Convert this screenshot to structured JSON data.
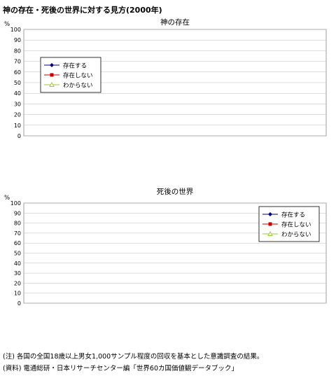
{
  "page": {
    "title": "神の存在・死後の世界に対する見方(2000年)",
    "notes": [
      "(注) 各国の全国18歳以上男女1,000サンプル程度の回収を基本とした意識調査の結果。",
      "(資料) 電通総研・日本リサーチセンター編「世界60カ国価値観データブック」"
    ]
  },
  "legend_labels": [
    "存在する",
    "存在しない",
    "わからない"
  ],
  "chart_data": [
    {
      "type": "line",
      "title": "神の存在",
      "ylabel": "%",
      "ylim": [
        0,
        100
      ],
      "yticks": [
        0,
        10,
        20,
        30,
        40,
        50,
        60,
        70,
        80,
        90,
        100
      ],
      "x": [],
      "grid": true,
      "legend": "upper-left",
      "series": [
        {
          "name": "存在する",
          "values": [],
          "color": "#000080",
          "marker": "diamond"
        },
        {
          "name": "存在しない",
          "values": [],
          "color": "#cc0000",
          "marker": "square"
        },
        {
          "name": "わからない",
          "values": [],
          "color": "#99cc33",
          "marker": "triangle"
        }
      ]
    },
    {
      "type": "line",
      "title": "死後の世界",
      "ylabel": "%",
      "ylim": [
        0,
        100
      ],
      "yticks": [
        0,
        10,
        20,
        30,
        40,
        50,
        60,
        70,
        80,
        90,
        100
      ],
      "x": [],
      "grid": true,
      "legend": "upper-right",
      "series": [
        {
          "name": "存在する",
          "values": [],
          "color": "#000080",
          "marker": "diamond"
        },
        {
          "name": "存在しない",
          "values": [],
          "color": "#cc0000",
          "marker": "square"
        },
        {
          "name": "わからない",
          "values": [],
          "color": "#99cc33",
          "marker": "triangle"
        }
      ]
    }
  ]
}
